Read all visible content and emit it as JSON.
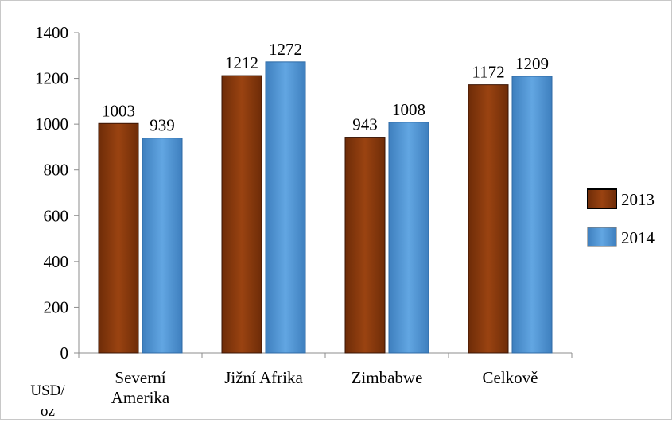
{
  "chart_data": {
    "type": "bar",
    "categories": [
      "Severní Amerika",
      "Jižní Afrika",
      "Zimbabwe",
      "Celkově"
    ],
    "category_lines": [
      [
        "Severní",
        "Amerika"
      ],
      [
        "Jižní Afrika"
      ],
      [
        "Zimbabwe"
      ],
      [
        "Celkově"
      ]
    ],
    "series": [
      {
        "name": "2013",
        "values": [
          1003,
          1212,
          943,
          1172
        ],
        "color": "#8B3A0E"
      },
      {
        "name": "2014",
        "values": [
          939,
          1272,
          1008,
          1209
        ],
        "color": "#4F95D4"
      }
    ],
    "ylim": [
      0,
      1400
    ],
    "yticks": [
      0,
      200,
      400,
      600,
      800,
      1000,
      1200,
      1400
    ],
    "ylabel_lines": [
      "USD/",
      "oz"
    ],
    "legend_position": "right",
    "grid": false,
    "data_labels": true
  }
}
